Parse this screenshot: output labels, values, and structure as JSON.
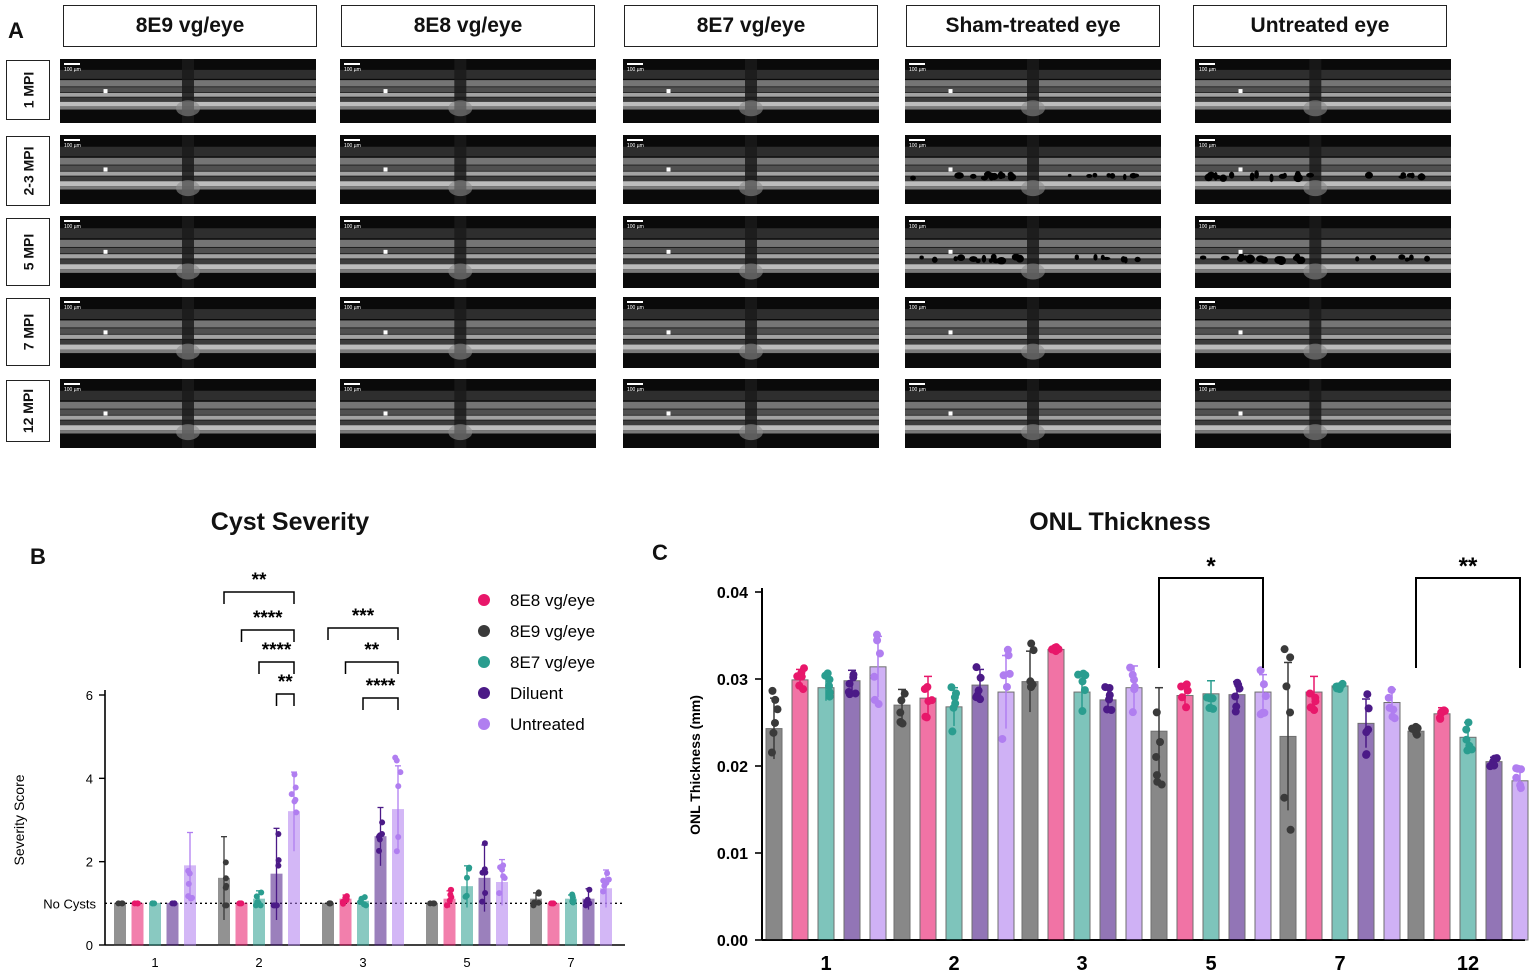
{
  "panel_a": {
    "label": "A",
    "columns": [
      "8E9 vg/eye",
      "8E8 vg/eye",
      "8E7 vg/eye",
      "Sham-treated eye",
      "Untreated eye"
    ],
    "rows": [
      "1 MPI",
      "2-3 MPI",
      "5 MPI",
      "7 MPI",
      "12 MPI"
    ],
    "scale_bar": "100 µm"
  },
  "panel_b": {
    "label": "B"
  },
  "panel_c": {
    "label": "C"
  },
  "chart_data": [
    {
      "type": "bar",
      "title": "Cyst Severity",
      "xlabel": "",
      "ylabel": "Severity Score",
      "ylim": [
        0,
        6
      ],
      "yticks": [
        0,
        2,
        4,
        6
      ],
      "baseline_label": "No Cysts",
      "baseline_value": 1,
      "categories": [
        "1",
        "2",
        "3",
        "5",
        "7"
      ],
      "legend": [
        "8E8 vg/eye",
        "8E9 vg/eye",
        "8E7 vg/eye",
        "Diluent",
        "Untreated"
      ],
      "series": [
        {
          "name": "8E9 vg/eye",
          "color": "#3a3a3a",
          "values": [
            1.0,
            1.6,
            1.0,
            1.0,
            1.1
          ],
          "sd": [
            0,
            1.0,
            0,
            0,
            0.15
          ]
        },
        {
          "name": "8E8 vg/eye",
          "color": "#e8176a",
          "values": [
            1.0,
            1.0,
            1.1,
            1.1,
            1.0
          ],
          "sd": [
            0,
            0,
            0.1,
            0.2,
            0
          ]
        },
        {
          "name": "8E7 vg/eye",
          "color": "#2a9d8f",
          "values": [
            1.0,
            1.1,
            1.05,
            1.4,
            1.1
          ],
          "sd": [
            0,
            0.2,
            0.1,
            0.5,
            0.1
          ]
        },
        {
          "name": "Diluent",
          "color": "#4b1a87",
          "values": [
            1.0,
            1.7,
            2.6,
            1.6,
            1.1
          ],
          "sd": [
            0,
            1.1,
            0.7,
            0.8,
            0.25
          ]
        },
        {
          "name": "Untreated",
          "color": "#b07ef0",
          "values": [
            1.9,
            3.2,
            3.25,
            1.5,
            1.35
          ],
          "sd": [
            0.8,
            0.95,
            1.05,
            0.55,
            0.45
          ]
        }
      ],
      "significance": [
        {
          "category": "2",
          "from": "8E9 vg/eye",
          "to": "Untreated",
          "label": "**"
        },
        {
          "category": "2",
          "from": "8E8 vg/eye",
          "to": "Untreated",
          "label": "****"
        },
        {
          "category": "2",
          "from": "8E7 vg/eye",
          "to": "Untreated",
          "label": "****"
        },
        {
          "category": "2",
          "from": "Diluent",
          "to": "Untreated",
          "label": "**"
        },
        {
          "category": "3",
          "from": "8E9 vg/eye",
          "to": "Untreated",
          "label": "***"
        },
        {
          "category": "3",
          "from": "8E8 vg/eye",
          "to": "Untreated",
          "label": "**"
        },
        {
          "category": "3",
          "from": "8E7 vg/eye",
          "to": "Untreated",
          "label": "****"
        }
      ]
    },
    {
      "type": "bar",
      "title": "ONL Thickness",
      "xlabel": "",
      "ylabel": "ONL Thickness (mm)",
      "ylim": [
        0,
        0.04
      ],
      "yticks": [
        "0.00",
        "0.01",
        "0.02",
        "0.03",
        "0.04"
      ],
      "categories": [
        "1",
        "2",
        "3",
        "5",
        "7",
        "12"
      ],
      "series": [
        {
          "name": "8E9 vg/eye",
          "color": "#3a3a3a",
          "values": [
            0.0243,
            0.027,
            0.0297,
            0.024,
            0.0234,
            0.024
          ],
          "sd": [
            0.0035,
            0.0018,
            0.0035,
            0.005,
            0.0085,
            0.0004
          ]
        },
        {
          "name": "8E8 vg/eye",
          "color": "#e8176a",
          "values": [
            0.0299,
            0.0278,
            0.0334,
            0.0281,
            0.0285,
            0.026
          ],
          "sd": [
            0.0012,
            0.0025,
            0.0002,
            0.0012,
            0.0018,
            0.0007
          ]
        },
        {
          "name": "8E7 vg/eye",
          "color": "#2a9d8f",
          "values": [
            0.029,
            0.0268,
            0.0285,
            0.0283,
            0.0292,
            0.0233
          ],
          "sd": [
            0.0015,
            0.0022,
            0.0018,
            0.0015,
            0.0003,
            0.0017
          ]
        },
        {
          "name": "Diluent",
          "color": "#4b1a87",
          "values": [
            0.0298,
            0.0293,
            0.0276,
            0.0282,
            0.0249,
            0.0205
          ],
          "sd": [
            0.0012,
            0.0018,
            0.0012,
            0.0015,
            0.0028,
            0.0005
          ]
        },
        {
          "name": "Untreated",
          "color": "#b07ef0",
          "values": [
            0.0314,
            0.0285,
            0.029,
            0.0285,
            0.0273,
            0.0183
          ],
          "sd": [
            0.0035,
            0.0042,
            0.0025,
            0.002,
            0.0015,
            0.0013
          ]
        }
      ],
      "significance": [
        {
          "category": "5",
          "from": "8E9 vg/eye",
          "to": "Untreated",
          "label": "*"
        },
        {
          "category": "12",
          "from": "8E9 vg/eye",
          "to": "Untreated",
          "label": "**"
        }
      ]
    }
  ]
}
